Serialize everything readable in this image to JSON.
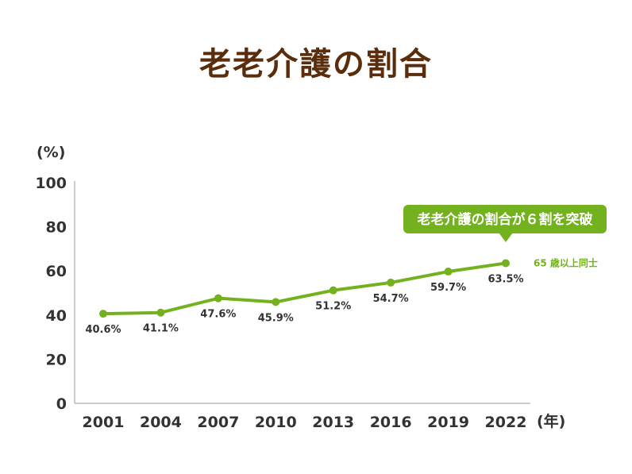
{
  "title": "老老介護の割合",
  "colors": {
    "title": "#5a2d0c",
    "line": "#73b21e",
    "axis": "#999999",
    "text": "#333333"
  },
  "chart_data": {
    "type": "line",
    "title": "老老介護の割合",
    "ylabel": "(%)",
    "xlabel": "(年)",
    "ylim": [
      0,
      100
    ],
    "yticks": [
      0,
      20,
      40,
      60,
      80,
      100
    ],
    "categories": [
      "2001",
      "2004",
      "2007",
      "2010",
      "2013",
      "2016",
      "2019",
      "2022"
    ],
    "series": [
      {
        "name": "65 歳以上同士",
        "values": [
          40.6,
          41.1,
          47.6,
          45.9,
          51.2,
          54.7,
          59.7,
          63.5
        ]
      }
    ],
    "data_labels": [
      "40.6%",
      "41.1%",
      "47.6%",
      "45.9%",
      "51.2%",
      "54.7%",
      "59.7%",
      "63.5%"
    ],
    "annotation": "老老介護の割合が６割を突破",
    "grid": false,
    "legend": "right"
  }
}
